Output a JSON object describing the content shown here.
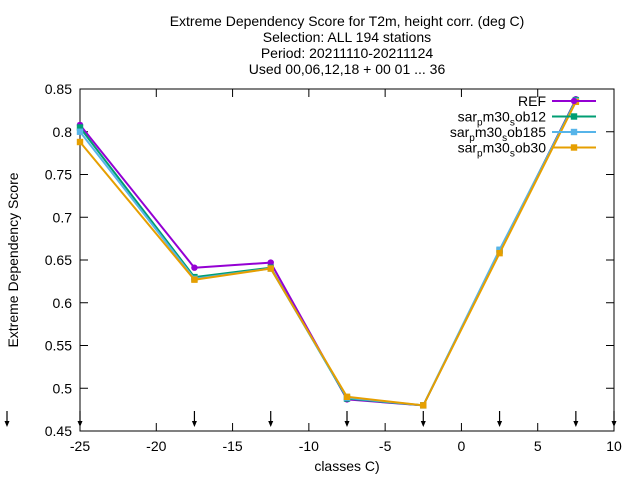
{
  "chart_data": {
    "type": "line",
    "title_lines": [
      "Extreme Dependency Score  for T2m, height corr. (deg C)",
      "Selection: ALL    194 stations",
      "Period: 20211110-20211124",
      "Used 00,06,12,18 + 00 01 ... 36"
    ],
    "xlabel": "classes C)",
    "ylabel": "Extreme Dependency Score",
    "xlim": [
      -25,
      10
    ],
    "ylim": [
      0.45,
      0.85
    ],
    "x_ticks": [
      -25,
      -20,
      -15,
      -10,
      -5,
      0,
      5,
      10
    ],
    "x_tick_labels": [
      "-25",
      "-20",
      "-15",
      "-10",
      "-5",
      "0",
      "5",
      "10"
    ],
    "y_ticks": [
      0.45,
      0.5,
      0.55,
      0.6,
      0.65,
      0.7,
      0.75,
      0.8,
      0.85
    ],
    "y_tick_labels": [
      "0.45",
      "0.5",
      "0.55",
      "0.6",
      "0.65",
      "0.7",
      "0.75",
      "0.8",
      "0.85"
    ],
    "grid": false,
    "legend_position": "top-right",
    "x": [
      -25,
      -17.5,
      -12.5,
      -7.5,
      -2.5,
      2.5,
      7.5
    ],
    "series": [
      {
        "name": "REF",
        "color": "#9400d3",
        "marker": "circle",
        "values": [
          0.808,
          0.641,
          0.647,
          0.487,
          0.48,
          0.66,
          0.838
        ]
      },
      {
        "name_parts": [
          [
            "sar",
            "n"
          ],
          [
            "p",
            "sub"
          ],
          [
            "m30",
            "n"
          ],
          [
            "s",
            "sub"
          ],
          [
            "ob12",
            "n"
          ]
        ],
        "color": "#009e73",
        "marker": "square",
        "values": [
          0.805,
          0.63,
          0.641,
          0.488,
          0.48,
          0.661,
          0.837
        ]
      },
      {
        "name_parts": [
          [
            "sar",
            "n"
          ],
          [
            "p",
            "sub"
          ],
          [
            "m30",
            "n"
          ],
          [
            "s",
            "sub"
          ],
          [
            "ob185",
            "n"
          ]
        ],
        "color": "#56b4e9",
        "marker": "square",
        "values": [
          0.8,
          0.628,
          0.64,
          0.489,
          0.48,
          0.662,
          0.836
        ]
      },
      {
        "name_parts": [
          [
            "sar",
            "n"
          ],
          [
            "p",
            "sub"
          ],
          [
            "m30",
            "n"
          ],
          [
            "s",
            "sub"
          ],
          [
            "ob30",
            "n"
          ]
        ],
        "color": "#e69f00",
        "marker": "square",
        "values": [
          0.788,
          0.627,
          0.64,
          0.49,
          0.48,
          0.658,
          0.835
        ]
      }
    ],
    "bottom_markers_x": [
      -25,
      -17.5,
      -12.5,
      -7.5,
      -2.5,
      2.5,
      7.5,
      10
    ]
  }
}
